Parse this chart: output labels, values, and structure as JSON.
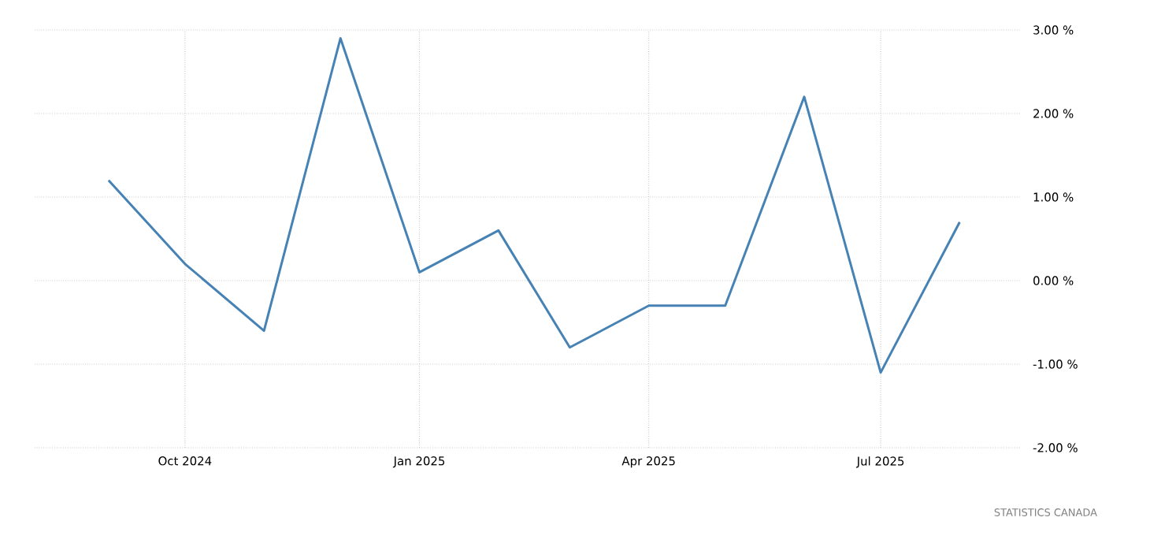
{
  "chart_data": {
    "type": "line",
    "x": [
      "2024-09-01",
      "2024-10-01",
      "2024-11-01",
      "2024-12-01",
      "2025-01-01",
      "2025-02-01",
      "2025-03-01",
      "2025-04-01",
      "2025-05-01",
      "2025-06-01",
      "2025-07-01",
      "2025-08-01"
    ],
    "series": [
      {
        "color": "#4682b4",
        "values": [
          1.2,
          0.2,
          -0.6,
          2.9,
          0.1,
          0.6,
          -0.8,
          -0.3,
          -0.3,
          2.2,
          -1.1,
          0.7
        ]
      }
    ],
    "xlim": [
      "2024-08-03",
      "2025-08-25"
    ],
    "xticks": [
      {
        "value": "2024-10-01",
        "label": "Oct 2024"
      },
      {
        "value": "2025-01-01",
        "label": "Jan 2025"
      },
      {
        "value": "2025-04-01",
        "label": "Apr 2025"
      },
      {
        "value": "2025-07-01",
        "label": "Jul 2025"
      }
    ],
    "ylim": [
      -2,
      3
    ],
    "yticks": [
      {
        "value": 3,
        "label": "3.00 %"
      },
      {
        "value": 2,
        "label": "2.00 %"
      },
      {
        "value": 1,
        "label": "1.00 %"
      },
      {
        "value": 0,
        "label": "0.00 %"
      },
      {
        "value": -1,
        "label": "-1.00 %"
      },
      {
        "value": -2,
        "label": "-2.00 %"
      }
    ],
    "grid": true,
    "line_style": "solid",
    "marker": "none",
    "annotations": [
      "STATISTICS CANADA"
    ]
  }
}
